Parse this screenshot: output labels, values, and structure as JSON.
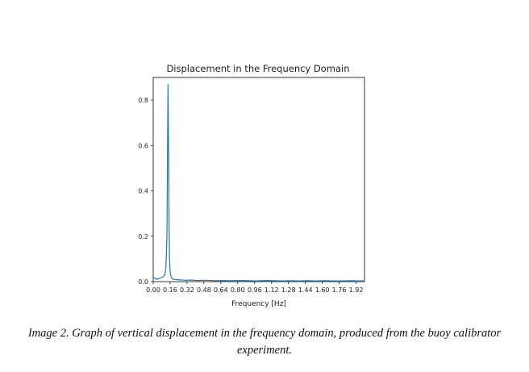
{
  "chart_data": {
    "type": "line",
    "title": "Displacement in the Frequency Domain",
    "xlabel": "Frequency [Hz]",
    "ylabel": "",
    "xlim": [
      0,
      2.0
    ],
    "ylim": [
      0,
      0.9
    ],
    "x_ticks": [
      0.0,
      0.16,
      0.32,
      0.48,
      0.64,
      0.8,
      0.96,
      1.12,
      1.28,
      1.44,
      1.6,
      1.76,
      1.92
    ],
    "x_tick_labels": [
      "0.00",
      "0.16",
      "0.32",
      "0.48",
      "0.64",
      "0.80",
      "0.96",
      "1.12",
      "1.28",
      "1.44",
      "1.60",
      "1.76",
      "1.92"
    ],
    "y_ticks": [
      0.0,
      0.2,
      0.4,
      0.6,
      0.8
    ],
    "y_tick_labels": [
      "0.0",
      "0.2",
      "0.4",
      "0.6",
      "0.8"
    ],
    "grid": false,
    "line_color": "#1f77b4",
    "series": [
      {
        "x": [
          0.0,
          0.03,
          0.06,
          0.09,
          0.11,
          0.12,
          0.13,
          0.135,
          0.14,
          0.145,
          0.15,
          0.155,
          0.16,
          0.17,
          0.18,
          0.2,
          0.24,
          0.3,
          0.36,
          0.42,
          0.5,
          0.58,
          0.66,
          0.74,
          0.82,
          0.9,
          0.98,
          1.06,
          1.14,
          1.22,
          1.3,
          1.38,
          1.46,
          1.54,
          1.62,
          1.7,
          1.78,
          1.86,
          1.94,
          2.0
        ],
        "y": [
          0.02,
          0.01,
          0.015,
          0.02,
          0.03,
          0.06,
          0.2,
          0.55,
          0.87,
          0.6,
          0.25,
          0.09,
          0.04,
          0.02,
          0.012,
          0.01,
          0.008,
          0.006,
          0.007,
          0.005,
          0.006,
          0.004,
          0.005,
          0.004,
          0.005,
          0.004,
          0.003,
          0.005,
          0.004,
          0.003,
          0.004,
          0.003,
          0.004,
          0.003,
          0.004,
          0.003,
          0.003,
          0.004,
          0.003,
          0.003
        ]
      }
    ]
  },
  "caption": "Image 2. Graph of vertical displacement in the frequency domain, produced from the buoy calibrator experiment."
}
